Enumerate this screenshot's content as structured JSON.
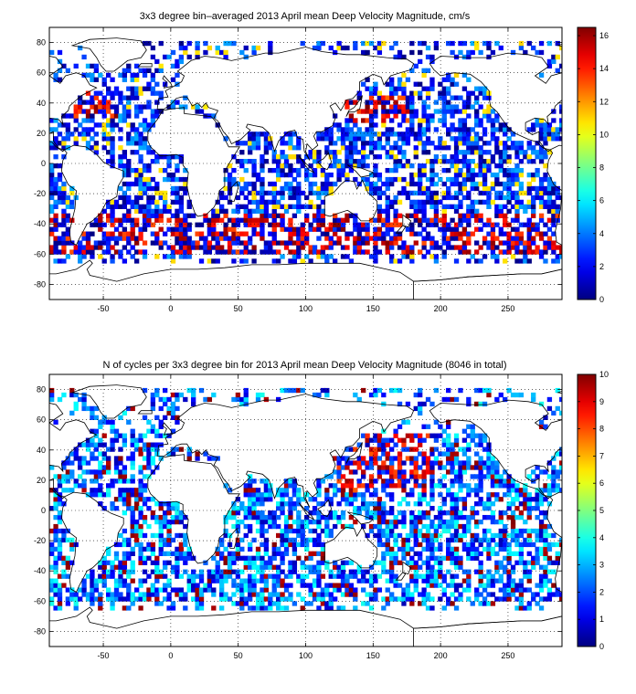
{
  "colors": {
    "land": "#ffffff",
    "frame": "#000000",
    "grid": "#000000",
    "colormap": "jet",
    "jet_stops": [
      "#00008f",
      "#0000ff",
      "#00ffff",
      "#ffff00",
      "#ff0000",
      "#800000"
    ]
  },
  "chart_data": [
    {
      "type": "heatmap",
      "title": "3x3 degree bin–averaged 2013 April mean Deep Velocity Magnitude, cm/s",
      "xlabel": "",
      "ylabel": "",
      "xlim": [
        -90,
        290
      ],
      "ylim": [
        -90,
        90
      ],
      "x_ticks": [
        -50,
        0,
        50,
        100,
        150,
        200,
        250
      ],
      "y_ticks": [
        -80,
        -60,
        -40,
        -20,
        0,
        20,
        40,
        60,
        80
      ],
      "grid": true,
      "grid_style": "dotted",
      "bin_size_deg": 3,
      "colorbar": {
        "min": 0,
        "max": 16.5,
        "ticks": [
          0,
          2,
          4,
          6,
          8,
          10,
          12,
          14,
          16
        ],
        "placement": "right"
      },
      "value_pattern": "mostly 0-6 cm/s over interior oceans; high values 10-16 cm/s along the Antarctic Circumpolar Current (~40-60S), Kuroshio and Gulf Stream regions"
    },
    {
      "type": "heatmap",
      "title": "N of cycles per 3x3 degree bin for 2013 April mean Deep Velocity Magnitude (8046 in total)",
      "xlabel": "",
      "ylabel": "",
      "xlim": [
        -90,
        290
      ],
      "ylim": [
        -90,
        90
      ],
      "x_ticks": [
        -50,
        0,
        50,
        100,
        150,
        200,
        250
      ],
      "y_ticks": [
        -80,
        -60,
        -40,
        -20,
        0,
        20,
        40,
        60,
        80
      ],
      "grid": true,
      "grid_style": "dotted",
      "bin_size_deg": 3,
      "total_cycles": 8046,
      "colorbar": {
        "min": 0,
        "max": 10,
        "ticks": [
          0,
          1,
          2,
          3,
          4,
          5,
          6,
          7,
          8,
          9,
          10
        ],
        "placement": "right"
      },
      "value_pattern": "mostly 1-4 cycles per bin; higher counts 7-10 in the northwest Pacific (Kuroshio region) and scattered elsewhere"
    }
  ]
}
